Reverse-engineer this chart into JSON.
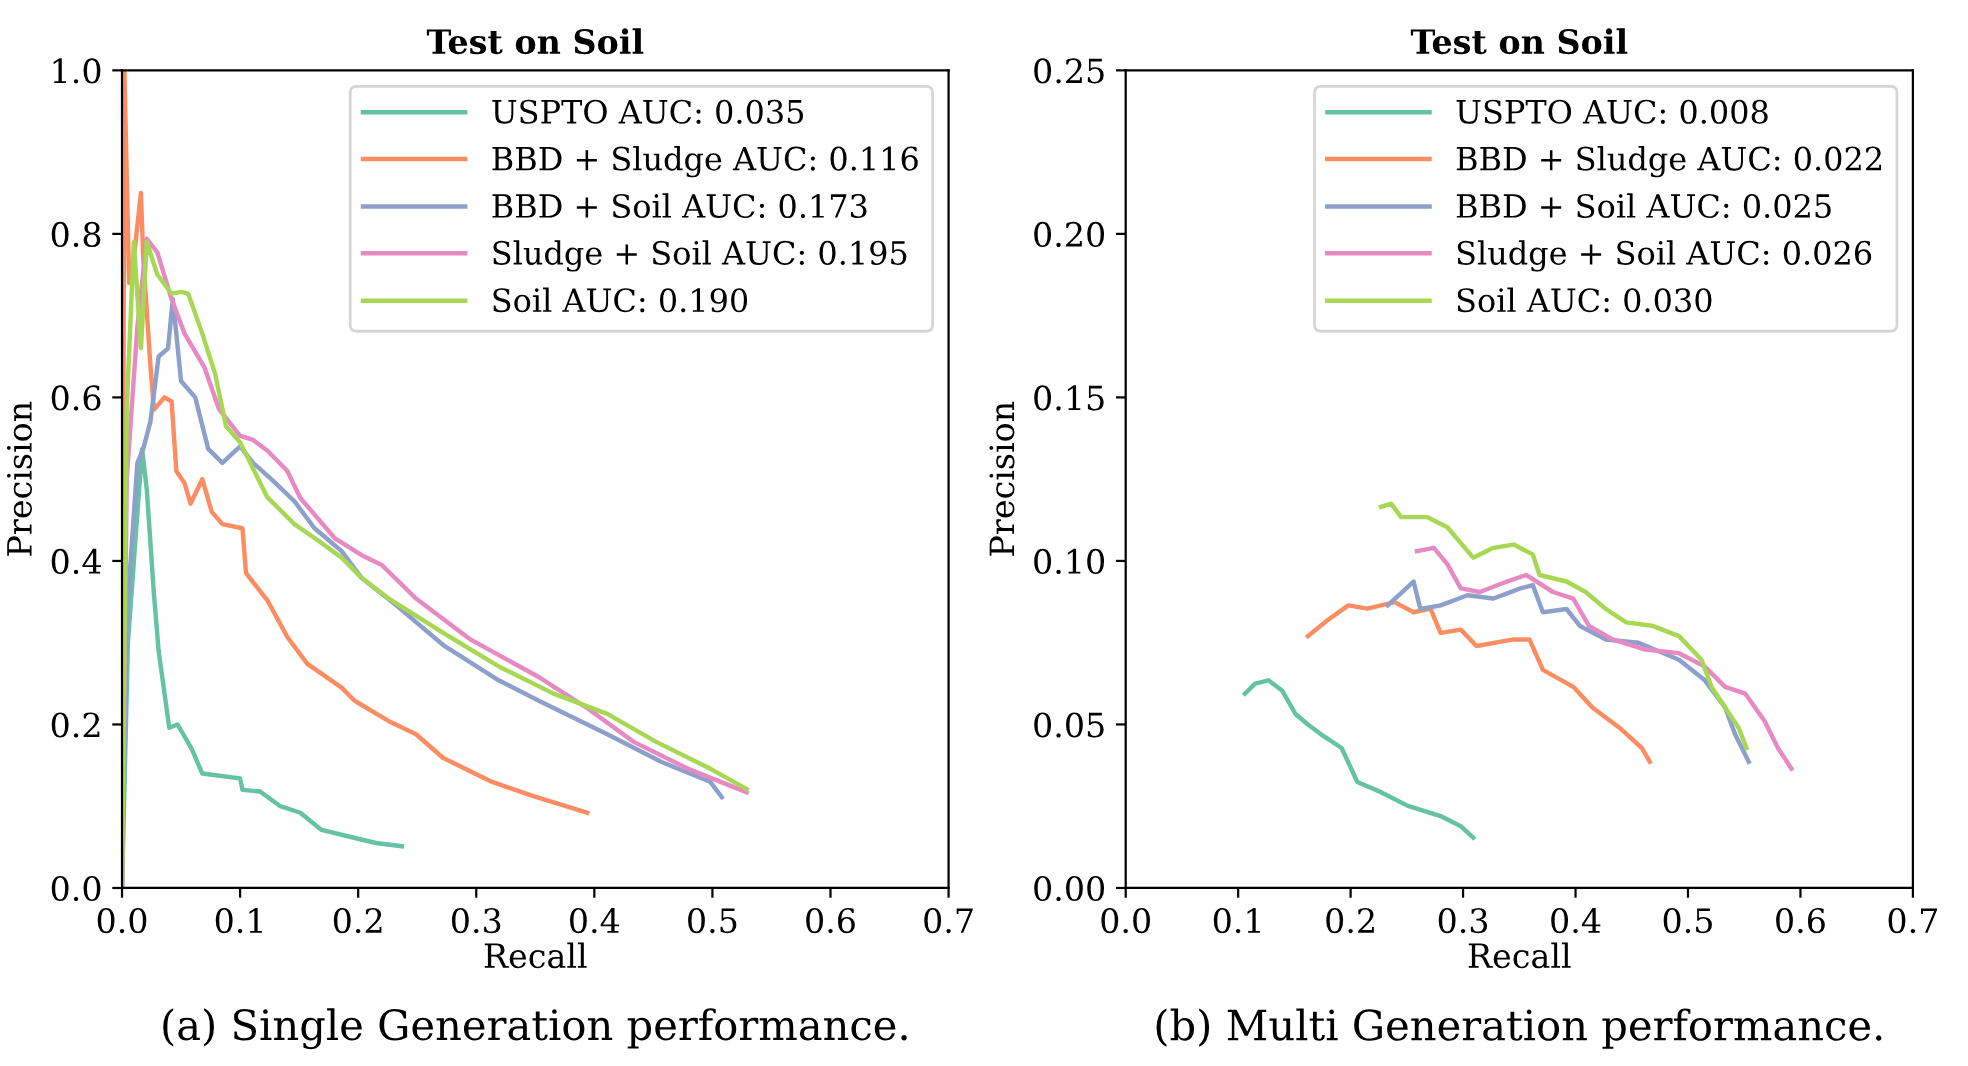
{
  "chart_data": [
    {
      "type": "line",
      "title": "Test on Soil",
      "xlabel": "Recall",
      "ylabel": "Precision",
      "annotations": [
        "(a) Single Generation performance."
      ],
      "xlim": [
        0,
        0.7
      ],
      "xticks": [
        {
          "value": 0,
          "label": "0.0"
        },
        0.1,
        0.2,
        0.3,
        0.4,
        0.5,
        0.6,
        0.7
      ],
      "ylim": [
        0,
        1.0
      ],
      "yticks": [
        {
          "value": 0,
          "label": "0.0"
        },
        0.2,
        0.4,
        0.6,
        0.8,
        {
          "value": 1,
          "label": "1.0"
        }
      ],
      "grid": false,
      "legend": "top right",
      "marker": "none",
      "line_style": "solid",
      "series": [
        {
          "name": "USPTO AUC: 0.035",
          "color": "#66c2a5",
          "x": [
            0.0,
            0.005,
            0.017,
            0.021,
            0.027,
            0.031,
            0.04,
            0.047,
            0.059,
            0.068,
            0.1,
            0.102,
            0.117,
            0.134,
            0.151,
            0.169,
            0.192,
            0.215,
            0.237
          ],
          "values": [
            0.0,
            0.3,
            0.537,
            0.487,
            0.36,
            0.29,
            0.196,
            0.2,
            0.17,
            0.14,
            0.134,
            0.12,
            0.118,
            0.1,
            0.092,
            0.071,
            0.063,
            0.055,
            0.051
          ]
        },
        {
          "name": "BBD + Sludge AUC: 0.116",
          "color": "#fc8d62",
          "x": [
            0.0,
            0.002,
            0.006,
            0.01,
            0.016,
            0.018,
            0.024,
            0.027,
            0.036,
            0.042,
            0.046,
            0.053,
            0.058,
            0.068,
            0.076,
            0.085,
            0.102,
            0.105,
            0.123,
            0.14,
            0.157,
            0.186,
            0.197,
            0.226,
            0.249,
            0.272,
            0.313,
            0.347,
            0.394
          ],
          "values": [
            0.0,
            1.0,
            0.74,
            0.77,
            0.85,
            0.77,
            0.64,
            0.585,
            0.6,
            0.595,
            0.51,
            0.495,
            0.47,
            0.5,
            0.46,
            0.445,
            0.44,
            0.385,
            0.352,
            0.307,
            0.274,
            0.245,
            0.229,
            0.204,
            0.188,
            0.159,
            0.13,
            0.113,
            0.092
          ]
        },
        {
          "name": "BBD + Soil AUC: 0.173",
          "color": "#8da0cb",
          "x": [
            0.0,
            0.004,
            0.013,
            0.018,
            0.024,
            0.031,
            0.039,
            0.043,
            0.05,
            0.062,
            0.073,
            0.085,
            0.1,
            0.111,
            0.128,
            0.146,
            0.163,
            0.186,
            0.203,
            0.232,
            0.273,
            0.319,
            0.353,
            0.411,
            0.457,
            0.498,
            0.508
          ],
          "values": [
            0.0,
            0.33,
            0.52,
            0.537,
            0.57,
            0.65,
            0.66,
            0.72,
            0.62,
            0.6,
            0.537,
            0.52,
            0.54,
            0.52,
            0.498,
            0.473,
            0.44,
            0.412,
            0.379,
            0.346,
            0.296,
            0.254,
            0.229,
            0.188,
            0.154,
            0.13,
            0.111
          ]
        },
        {
          "name": "Sludge + Soil AUC: 0.195",
          "color": "#e78ac3",
          "x": [
            0.0,
            0.004,
            0.013,
            0.021,
            0.03,
            0.042,
            0.053,
            0.07,
            0.082,
            0.1,
            0.111,
            0.123,
            0.14,
            0.151,
            0.18,
            0.203,
            0.22,
            0.249,
            0.295,
            0.353,
            0.393,
            0.433,
            0.479,
            0.529
          ],
          "values": [
            0.0,
            0.5,
            0.686,
            0.794,
            0.777,
            0.72,
            0.678,
            0.636,
            0.586,
            0.553,
            0.548,
            0.535,
            0.51,
            0.477,
            0.428,
            0.407,
            0.395,
            0.354,
            0.304,
            0.258,
            0.221,
            0.179,
            0.146,
            0.117
          ]
        },
        {
          "name": "Soil AUC: 0.190",
          "color": "#a6d854",
          "x": [
            0.0,
            0.004,
            0.01,
            0.016,
            0.021,
            0.03,
            0.042,
            0.05,
            0.056,
            0.068,
            0.079,
            0.088,
            0.1,
            0.123,
            0.146,
            0.163,
            0.186,
            0.203,
            0.226,
            0.272,
            0.319,
            0.365,
            0.411,
            0.452,
            0.498,
            0.529
          ],
          "values": [
            0.0,
            0.586,
            0.79,
            0.66,
            0.79,
            0.75,
            0.727,
            0.729,
            0.727,
            0.678,
            0.628,
            0.565,
            0.545,
            0.478,
            0.445,
            0.428,
            0.404,
            0.379,
            0.354,
            0.312,
            0.271,
            0.238,
            0.213,
            0.179,
            0.146,
            0.121
          ]
        }
      ]
    },
    {
      "type": "line",
      "title": "Test on Soil",
      "xlabel": "Recall",
      "ylabel": "Precision",
      "annotations": [
        "(b) Multi Generation performance."
      ],
      "xlim": [
        0,
        0.7
      ],
      "xticks": [
        {
          "value": 0,
          "label": "0.0"
        },
        0.1,
        0.2,
        0.3,
        0.4,
        0.5,
        0.6,
        0.7
      ],
      "ylim": [
        0,
        0.25
      ],
      "yticks": [
        {
          "value": 0,
          "label": "0.00"
        },
        {
          "value": 0.05,
          "label": "0.05"
        },
        {
          "value": 0.1,
          "label": "0.10"
        },
        {
          "value": 0.15,
          "label": "0.15"
        },
        {
          "value": 0.2,
          "label": "0.20"
        },
        {
          "value": 0.25,
          "label": "0.25"
        }
      ],
      "grid": false,
      "legend": "top right",
      "marker": "none",
      "line_style": "solid",
      "series": [
        {
          "name": "USPTO AUC: 0.008",
          "color": "#66c2a5",
          "x": [
            0.106,
            0.115,
            0.127,
            0.139,
            0.151,
            0.162,
            0.174,
            0.192,
            0.206,
            0.227,
            0.251,
            0.28,
            0.298,
            0.309
          ],
          "values": [
            0.0594,
            0.0625,
            0.0635,
            0.0604,
            0.0532,
            0.05,
            0.0469,
            0.0428,
            0.0324,
            0.0293,
            0.0251,
            0.022,
            0.0189,
            0.0154
          ]
        },
        {
          "name": "BBD + Sludge AUC: 0.022",
          "color": "#fc8d62",
          "x": [
            0.162,
            0.18,
            0.198,
            0.215,
            0.239,
            0.256,
            0.271,
            0.28,
            0.298,
            0.312,
            0.345,
            0.359,
            0.371,
            0.398,
            0.415,
            0.439,
            0.459,
            0.466
          ],
          "values": [
            0.077,
            0.082,
            0.0864,
            0.0854,
            0.0874,
            0.0843,
            0.0854,
            0.078,
            0.079,
            0.074,
            0.076,
            0.076,
            0.0667,
            0.0615,
            0.0552,
            0.049,
            0.0428,
            0.0386
          ]
        },
        {
          "name": "BBD + Soil AUC: 0.025",
          "color": "#8da0cb",
          "x": [
            0.233,
            0.256,
            0.262,
            0.28,
            0.304,
            0.327,
            0.351,
            0.362,
            0.371,
            0.392,
            0.404,
            0.427,
            0.456,
            0.492,
            0.515,
            0.533,
            0.542,
            0.554
          ],
          "values": [
            0.0864,
            0.0937,
            0.0853,
            0.0864,
            0.0895,
            0.0885,
            0.0916,
            0.0926,
            0.0843,
            0.0853,
            0.0801,
            0.076,
            0.075,
            0.0698,
            0.0635,
            0.0552,
            0.0469,
            0.0386
          ]
        },
        {
          "name": "Sludge + Soil AUC: 0.026",
          "color": "#e78ac3",
          "x": [
            0.259,
            0.274,
            0.286,
            0.298,
            0.315,
            0.339,
            0.356,
            0.38,
            0.398,
            0.412,
            0.433,
            0.462,
            0.492,
            0.515,
            0.533,
            0.551,
            0.568,
            0.58,
            0.592
          ],
          "values": [
            0.103,
            0.104,
            0.099,
            0.0916,
            0.0905,
            0.0937,
            0.0957,
            0.0905,
            0.0885,
            0.0801,
            0.076,
            0.0729,
            0.0718,
            0.0677,
            0.0615,
            0.0594,
            0.0511,
            0.0428,
            0.0365
          ]
        },
        {
          "name": "Soil AUC: 0.030",
          "color": "#a6d854",
          "x": [
            0.227,
            0.236,
            0.245,
            0.268,
            0.286,
            0.309,
            0.327,
            0.345,
            0.362,
            0.368,
            0.392,
            0.409,
            0.427,
            0.445,
            0.468,
            0.492,
            0.512,
            0.521,
            0.533,
            0.545,
            0.552
          ],
          "values": [
            0.1165,
            0.1175,
            0.1134,
            0.1134,
            0.1103,
            0.101,
            0.104,
            0.105,
            0.102,
            0.0957,
            0.0937,
            0.0905,
            0.0853,
            0.0812,
            0.0802,
            0.077,
            0.0698,
            0.0615,
            0.0552,
            0.049,
            0.0428
          ]
        }
      ]
    }
  ]
}
